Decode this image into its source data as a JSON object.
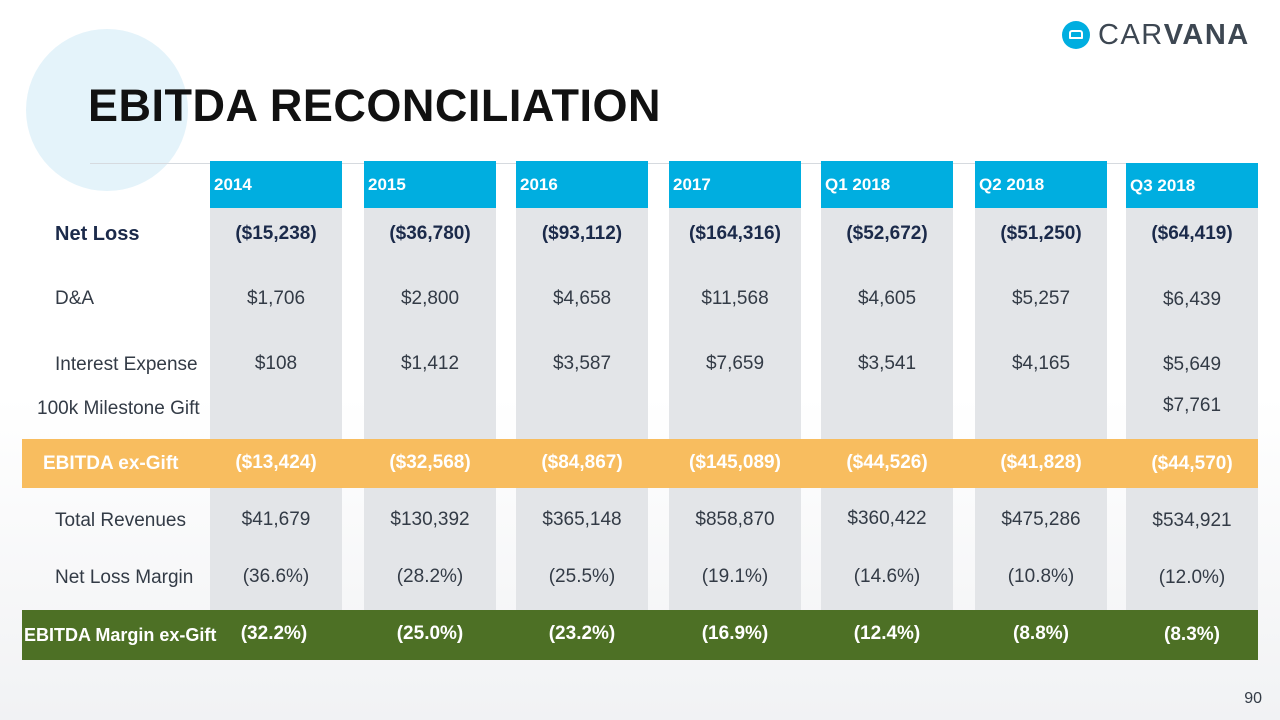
{
  "title": "EBITDA RECONCILIATION",
  "logo": {
    "part1": "CAR",
    "part2": "VANA",
    "icon": "car-icon"
  },
  "columns": [
    "2014",
    "2015",
    "2016",
    "2017",
    "Q1 2018",
    "Q2 2018",
    "Q3 2018"
  ],
  "rows": {
    "net_loss": {
      "label": "Net Loss",
      "values": [
        "($15,238)",
        "($36,780)",
        "($93,112)",
        "($164,316)",
        "($52,672)",
        "($51,250)",
        "($64,419)"
      ]
    },
    "da": {
      "label": "D&A",
      "values": [
        "$1,706",
        "$2,800",
        "$4,658",
        "$11,568",
        "$4,605",
        "$5,257",
        "$6,439"
      ]
    },
    "interest": {
      "label": "Interest Expense",
      "values": [
        "$108",
        "$1,412",
        "$3,587",
        "$7,659",
        "$3,541",
        "$4,165",
        "$5,649"
      ]
    },
    "gift": {
      "label": "100k Milestone Gift",
      "values": [
        "",
        "",
        "",
        "",
        "",
        "",
        "$7,761"
      ]
    },
    "ebitda": {
      "label": "EBITDA ex-Gift",
      "values": [
        "($13,424)",
        "($32,568)",
        "($84,867)",
        "($145,089)",
        "($44,526)",
        "($41,828)",
        "($44,570)"
      ]
    },
    "revenues": {
      "label": "Total Revenues",
      "values": [
        "$41,679",
        "$130,392",
        "$365,148",
        "$858,870",
        "$360,422",
        "$475,286",
        "$534,921"
      ]
    },
    "nl_margin": {
      "label": "Net Loss Margin",
      "values": [
        "(36.6%)",
        "(28.2%)",
        "(25.5%)",
        "(19.1%)",
        "(14.6%)",
        "(10.8%)",
        "(12.0%)"
      ]
    },
    "ebitda_margin": {
      "label": "EBITDA Margin ex-Gift",
      "values": [
        "(32.2%)",
        "(25.0%)",
        "(23.2%)",
        "(16.9%)",
        "(12.4%)",
        "(8.8%)",
        "(8.3%)"
      ]
    }
  },
  "colors": {
    "header": "#00aee0",
    "ebitda_band": "#f8bd5f",
    "margin_band": "#4d7025",
    "column_bg": "#e3e5e8"
  },
  "page_number": "90"
}
